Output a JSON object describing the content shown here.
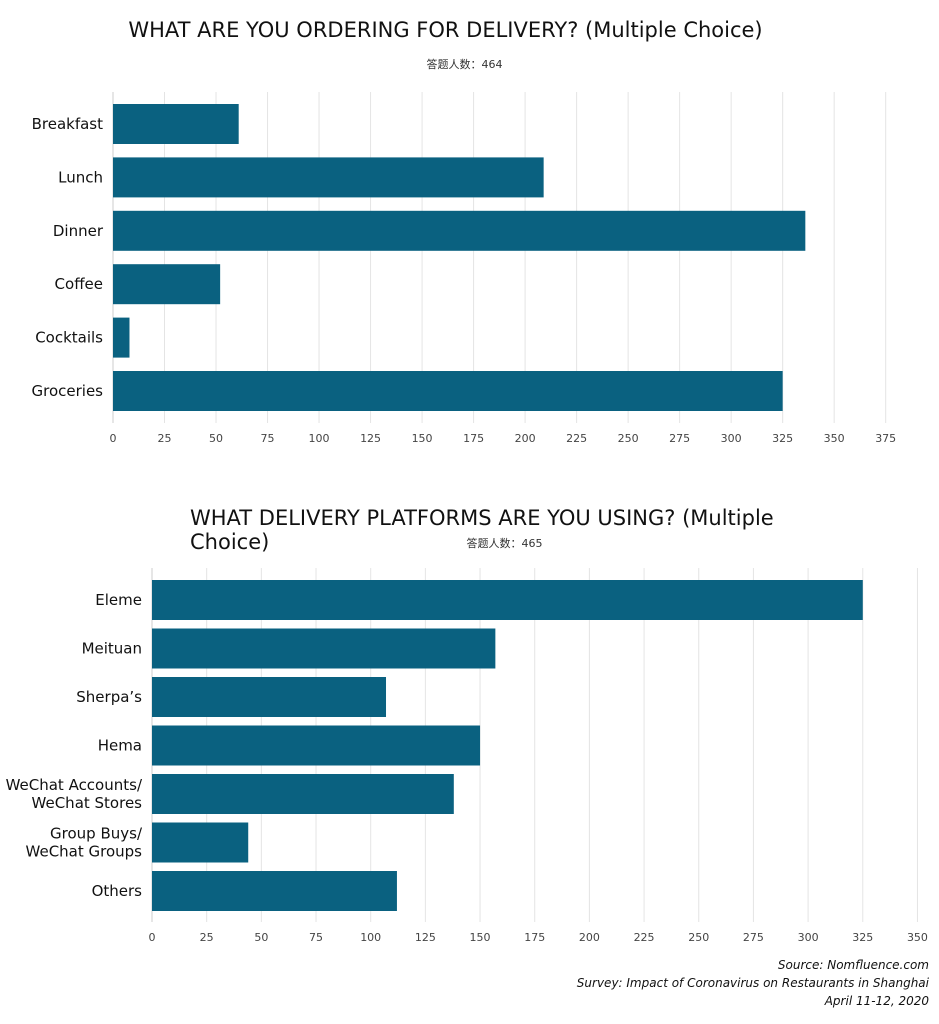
{
  "chart_data": [
    {
      "type": "bar",
      "orientation": "horizontal",
      "title": "WHAT ARE YOU ORDERING FOR DELIVERY? (Multiple Choice)",
      "subtitle": "答题人数：464",
      "categories": [
        "Breakfast",
        "Lunch",
        "Dinner",
        "Coffee",
        "Cocktails",
        "Groceries"
      ],
      "values": [
        61,
        209,
        336,
        52,
        8,
        325
      ],
      "xlim": [
        0,
        375
      ],
      "xticks": [
        0,
        25,
        50,
        75,
        100,
        125,
        150,
        175,
        200,
        225,
        250,
        275,
        300,
        325,
        350,
        375
      ],
      "grid": true,
      "bar_color": "#0a6180"
    },
    {
      "type": "bar",
      "orientation": "horizontal",
      "title": "WHAT DELIVERY PLATFORMS ARE YOU USING? (Multiple Choice)",
      "subtitle": "答题人数：465",
      "categories": [
        "Eleme",
        "Meituan",
        "Sherpa’s",
        "Hema",
        "WeChat Accounts/\nWeChat Stores",
        "Group Buys/\nWeChat Groups",
        "Others"
      ],
      "values": [
        325,
        157,
        107,
        150,
        138,
        44,
        112
      ],
      "xlim": [
        0,
        350
      ],
      "xticks": [
        0,
        25,
        50,
        75,
        100,
        125,
        150,
        175,
        200,
        225,
        250,
        275,
        300,
        325,
        350
      ],
      "grid": true,
      "bar_color": "#0a6180"
    }
  ],
  "source": {
    "line1": "Source: Nomfluence.com",
    "line2": "Survey: Impact of Coronavirus on Restaurants in Shanghai",
    "line3": "April 11-12, 2020"
  }
}
